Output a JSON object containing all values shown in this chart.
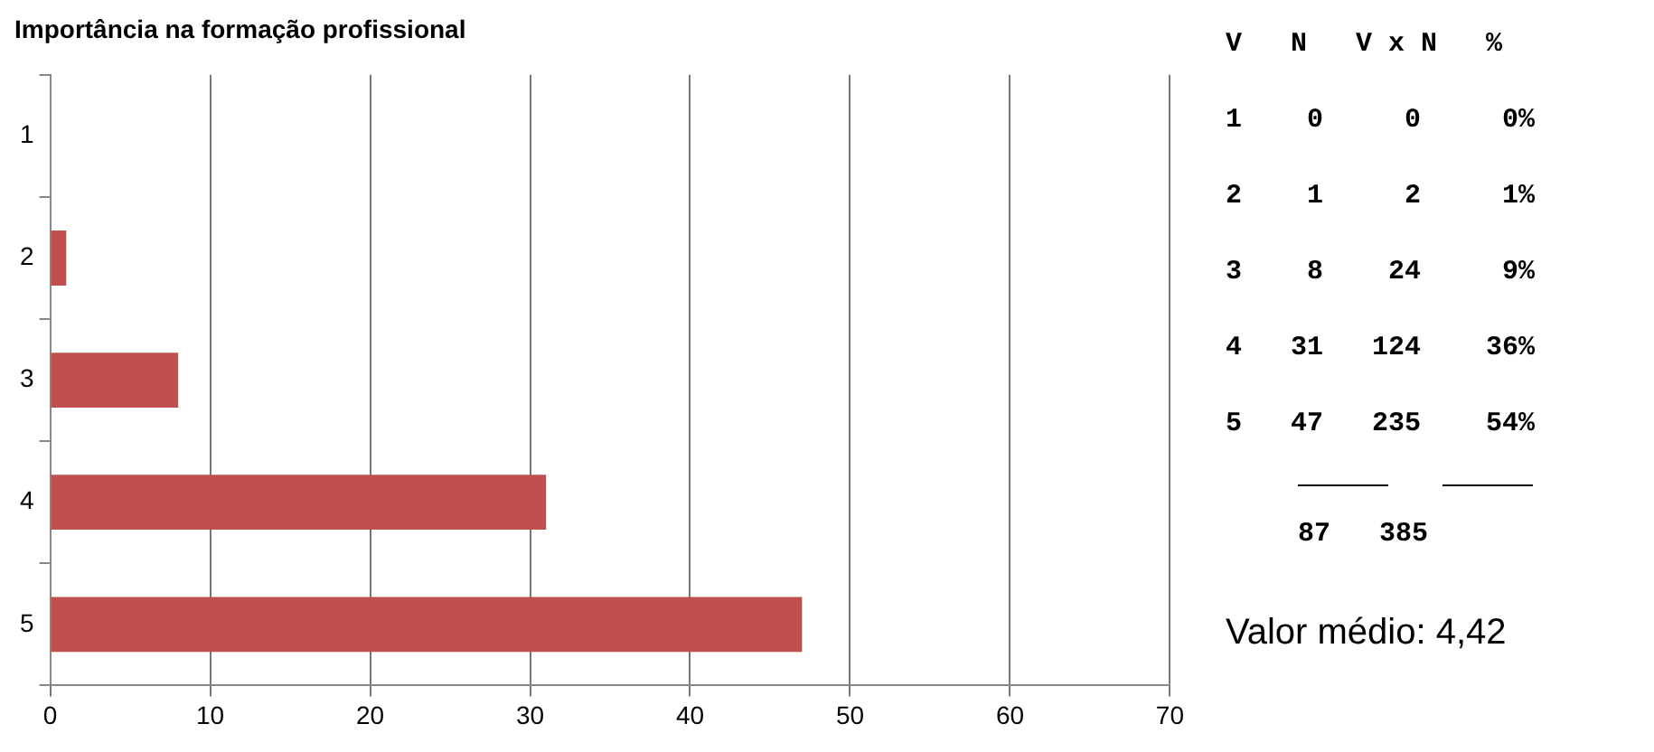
{
  "chart_data": {
    "type": "bar",
    "orientation": "horizontal",
    "title": "Importância na formação profissional",
    "categories": [
      "1",
      "2",
      "3",
      "4",
      "5"
    ],
    "values": [
      0,
      1,
      8,
      31,
      47
    ],
    "color": "#c0504d",
    "xlim": [
      0,
      70
    ],
    "xticks": [
      0,
      10,
      20,
      30,
      40,
      50,
      60,
      70
    ],
    "grid": "x",
    "annotations": [
      "V   N   V x N   %",
      "1    0     0     0%",
      "2    1     2     1%",
      "3    8    24     9%",
      "4   31   124    36%",
      "5   47   235    54%",
      "87   385",
      "Valor médio: 4,42"
    ]
  }
}
